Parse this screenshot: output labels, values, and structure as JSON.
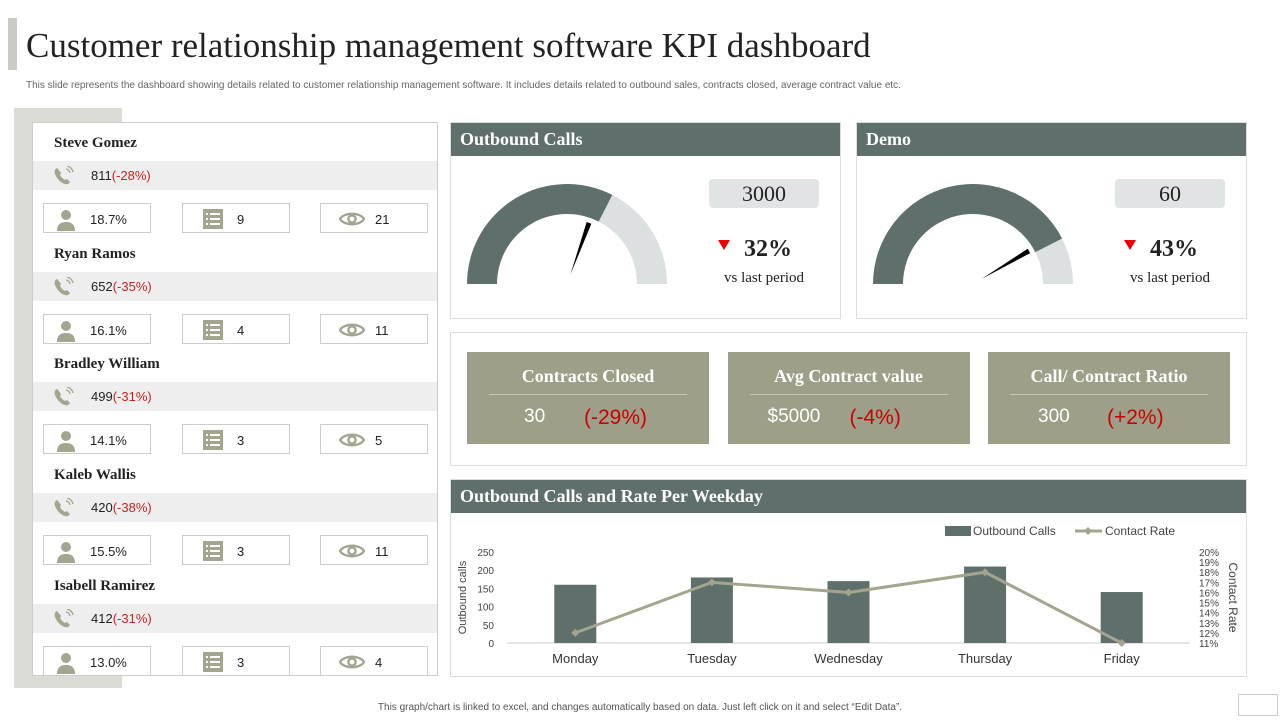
{
  "title": "Customer relationship management software KPI dashboard",
  "subtitle": "This slide represents the dashboard showing details related to customer relationship management software. It includes details related to outbound sales, contracts closed, average contract value etc.",
  "people": [
    {
      "name": "Steve Gomez",
      "calls": "811",
      "change": "(-28%)",
      "rate": "18.7%",
      "tasks": "9",
      "views": "21"
    },
    {
      "name": "Ryan Ramos",
      "calls": "652",
      "change": "(-35%)",
      "rate": "16.1%",
      "tasks": "4",
      "views": "11"
    },
    {
      "name": "Bradley William",
      "calls": "499",
      "change": "(-31%)",
      "rate": "14.1%",
      "tasks": "3",
      "views": "5"
    },
    {
      "name": "Kaleb Wallis",
      "calls": "420",
      "change": "(-38%)",
      "rate": "15.5%",
      "tasks": "3",
      "views": "11"
    },
    {
      "name": "Isabell Ramirez",
      "calls": "412",
      "change": "(-31%)",
      "rate": "13.0%",
      "tasks": "3",
      "views": "4"
    }
  ],
  "gauges": [
    {
      "title": "Outbound Calls",
      "value": "3000",
      "change": "32%",
      "caption": "vs last period",
      "fill": 0.65,
      "needle": 0.61
    },
    {
      "title": "Demo",
      "value": "60",
      "change": "43%",
      "caption": "vs last period",
      "fill": 0.85,
      "needle": 0.83
    }
  ],
  "kpis": [
    {
      "title": "Contracts Closed",
      "value": "30",
      "change": "(-29%)"
    },
    {
      "title": "Avg Contract value",
      "value": "$5000",
      "change": "(-4%)"
    },
    {
      "title": "Call/ Contract Ratio",
      "value": "300",
      "change": "(+2%)"
    }
  ],
  "colors": {
    "dark": "#5f706c",
    "light": "#dde0e0",
    "line": "#a3a58f",
    "negative": "#d02020"
  },
  "chart_data": {
    "type": "bar",
    "title": "Outbound Calls and Rate Per Weekday",
    "categories": [
      "Monday",
      "Tuesday",
      "Wednesday",
      "Thursday",
      "Friday"
    ],
    "series": [
      {
        "name": "Outbound Calls",
        "type": "bar",
        "axis": "left",
        "values": [
          160,
          180,
          170,
          210,
          140
        ]
      },
      {
        "name": "Contact Rate",
        "type": "line",
        "axis": "right",
        "values": [
          12,
          17,
          16,
          18,
          11
        ]
      }
    ],
    "ylabel": "Outbound calls",
    "y2label": "Contact Rate",
    "ylim": [
      0,
      250
    ],
    "yticks": [
      "0",
      "50",
      "100",
      "150",
      "200",
      "250"
    ],
    "y2lim": [
      11,
      20
    ],
    "y2ticks": [
      "11%",
      "12%",
      "13%",
      "14%",
      "15%",
      "16%",
      "17%",
      "18%",
      "19%",
      "20%"
    ],
    "legend": "top-right"
  },
  "footer": "This graph/chart is linked to excel, and changes automatically based on data. Just left click on it and select “Edit Data”."
}
